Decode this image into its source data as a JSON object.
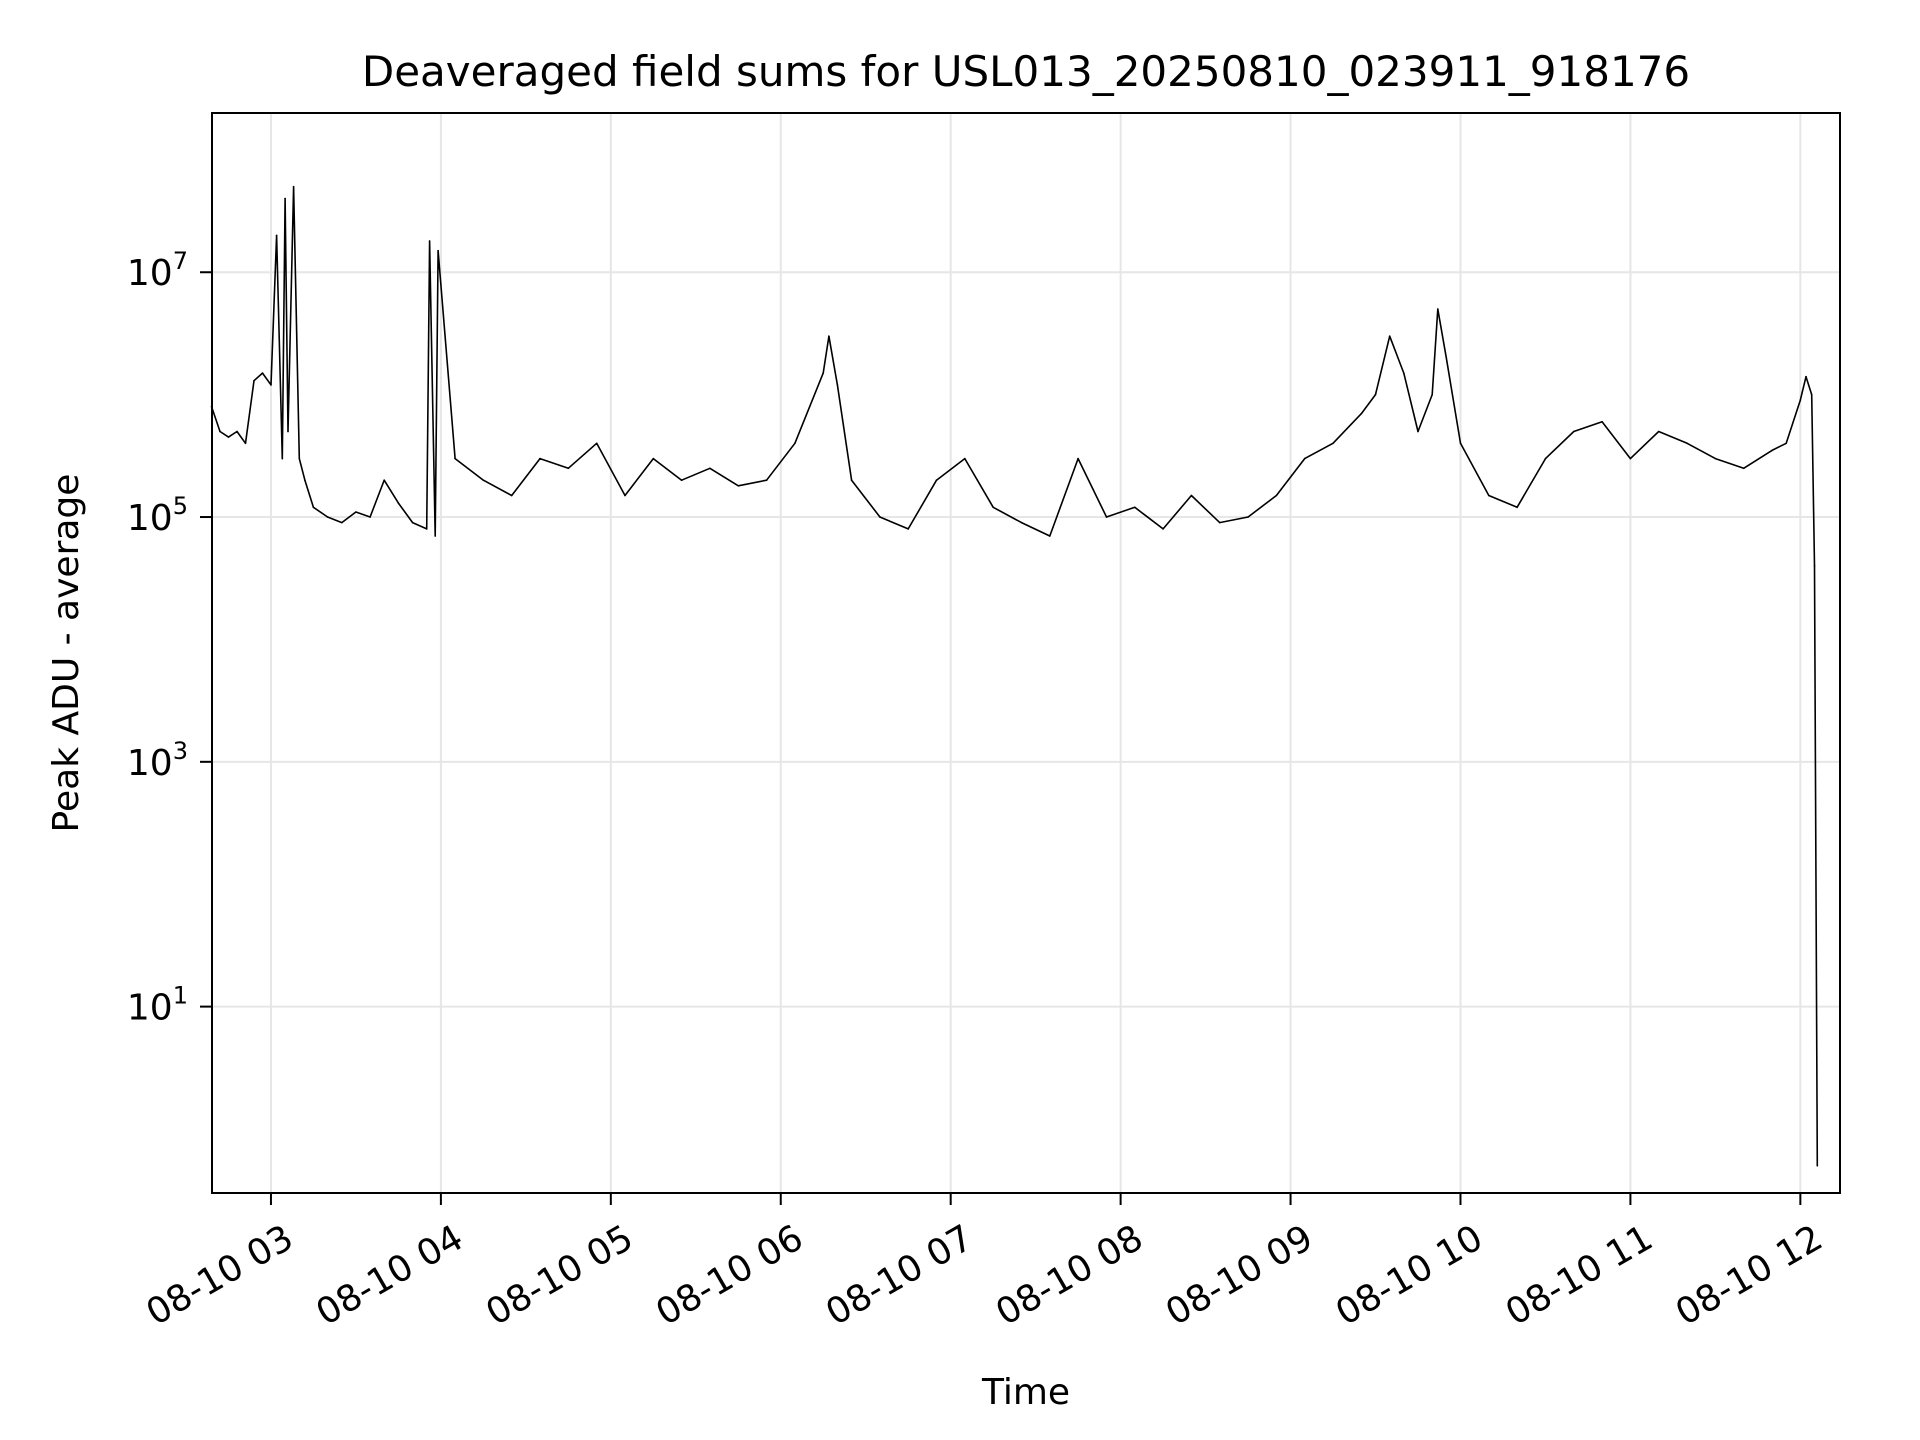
{
  "chart_data": {
    "type": "line",
    "title": "Deaveraged field sums for USL013_20250810_023911_918176",
    "xlabel": "Time",
    "ylabel": "Peak ADU - average",
    "y_scale": "log",
    "ylim": [
      0.3,
      200000000
    ],
    "xlim": [
      "2025-08-10 02:39:11",
      "2025-08-10 12:14:00"
    ],
    "grid": true,
    "x_ticks": [
      {
        "value": "2025-08-10 03:00",
        "label": "08-10 03"
      },
      {
        "value": "2025-08-10 04:00",
        "label": "08-10 04"
      },
      {
        "value": "2025-08-10 05:00",
        "label": "08-10 05"
      },
      {
        "value": "2025-08-10 06:00",
        "label": "08-10 06"
      },
      {
        "value": "2025-08-10 07:00",
        "label": "08-10 07"
      },
      {
        "value": "2025-08-10 08:00",
        "label": "08-10 08"
      },
      {
        "value": "2025-08-10 09:00",
        "label": "08-10 09"
      },
      {
        "value": "2025-08-10 10:00",
        "label": "08-10 10"
      },
      {
        "value": "2025-08-10 11:00",
        "label": "08-10 11"
      },
      {
        "value": "2025-08-10 12:00",
        "label": "08-10 12"
      }
    ],
    "y_ticks": [
      {
        "value": 10,
        "base": "10",
        "exp": "1"
      },
      {
        "value": 1000,
        "base": "10",
        "exp": "3"
      },
      {
        "value": 100000,
        "base": "10",
        "exp": "5"
      },
      {
        "value": 10000000,
        "base": "10",
        "exp": "7"
      }
    ],
    "series": [
      {
        "color": "#000000",
        "x": [
          "2025-08-10 02:39",
          "2025-08-10 02:42",
          "2025-08-10 02:45",
          "2025-08-10 02:48",
          "2025-08-10 02:51",
          "2025-08-10 02:54",
          "2025-08-10 02:57",
          "2025-08-10 03:00",
          "2025-08-10 03:02",
          "2025-08-10 03:04",
          "2025-08-10 03:05",
          "2025-08-10 03:06",
          "2025-08-10 03:08",
          "2025-08-10 03:10",
          "2025-08-10 03:12",
          "2025-08-10 03:15",
          "2025-08-10 03:20",
          "2025-08-10 03:25",
          "2025-08-10 03:30",
          "2025-08-10 03:35",
          "2025-08-10 03:40",
          "2025-08-10 03:45",
          "2025-08-10 03:50",
          "2025-08-10 03:55",
          "2025-08-10 03:56",
          "2025-08-10 03:58",
          "2025-08-10 03:59",
          "2025-08-10 04:05",
          "2025-08-10 04:15",
          "2025-08-10 04:25",
          "2025-08-10 04:35",
          "2025-08-10 04:45",
          "2025-08-10 04:55",
          "2025-08-10 05:05",
          "2025-08-10 05:15",
          "2025-08-10 05:25",
          "2025-08-10 05:35",
          "2025-08-10 05:45",
          "2025-08-10 05:55",
          "2025-08-10 06:05",
          "2025-08-10 06:15",
          "2025-08-10 06:17",
          "2025-08-10 06:20",
          "2025-08-10 06:25",
          "2025-08-10 06:35",
          "2025-08-10 06:45",
          "2025-08-10 06:55",
          "2025-08-10 07:05",
          "2025-08-10 07:15",
          "2025-08-10 07:25",
          "2025-08-10 07:35",
          "2025-08-10 07:45",
          "2025-08-10 07:55",
          "2025-08-10 08:05",
          "2025-08-10 08:15",
          "2025-08-10 08:25",
          "2025-08-10 08:35",
          "2025-08-10 08:45",
          "2025-08-10 08:55",
          "2025-08-10 09:05",
          "2025-08-10 09:15",
          "2025-08-10 09:25",
          "2025-08-10 09:30",
          "2025-08-10 09:35",
          "2025-08-10 09:40",
          "2025-08-10 09:45",
          "2025-08-10 09:50",
          "2025-08-10 09:52",
          "2025-08-10 09:55",
          "2025-08-10 10:00",
          "2025-08-10 10:10",
          "2025-08-10 10:20",
          "2025-08-10 10:30",
          "2025-08-10 10:40",
          "2025-08-10 10:50",
          "2025-08-10 11:00",
          "2025-08-10 11:10",
          "2025-08-10 11:20",
          "2025-08-10 11:30",
          "2025-08-10 11:40",
          "2025-08-10 11:50",
          "2025-08-10 11:55",
          "2025-08-10 12:00",
          "2025-08-10 12:02",
          "2025-08-10 12:04",
          "2025-08-10 12:05",
          "2025-08-10 12:06"
        ],
        "y": [
          800000,
          500000,
          450000,
          500000,
          400000,
          1300000,
          1500000,
          1200000,
          20000000,
          300000,
          40000000,
          500000,
          50000000,
          300000,
          200000,
          120000,
          100000,
          90000,
          110000,
          100000,
          200000,
          130000,
          90000,
          80000,
          18000000,
          70000,
          15000000,
          300000,
          200000,
          150000,
          300000,
          250000,
          400000,
          150000,
          300000,
          200000,
          250000,
          180000,
          200000,
          400000,
          1500000,
          3000000,
          1200000,
          200000,
          100000,
          80000,
          200000,
          300000,
          120000,
          90000,
          70000,
          300000,
          100000,
          120000,
          80000,
          150000,
          90000,
          100000,
          150000,
          300000,
          400000,
          700000,
          1000000,
          3000000,
          1500000,
          500000,
          1000000,
          5000000,
          2000000,
          400000,
          150000,
          120000,
          300000,
          500000,
          600000,
          300000,
          500000,
          400000,
          300000,
          250000,
          350000,
          400000,
          900000,
          1400000,
          1000000,
          40000,
          0.5
        ]
      }
    ]
  }
}
